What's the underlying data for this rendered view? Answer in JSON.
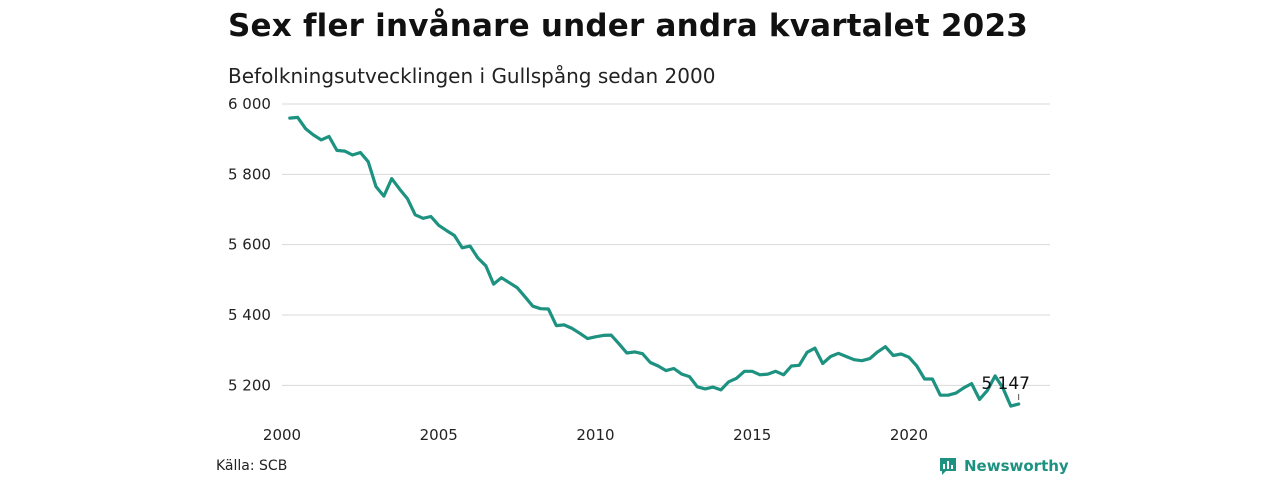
{
  "title": "Sex fler invånare under andra kvartalet 2023",
  "subtitle": "Befolkningsutvecklingen i Gullspång sedan 2000",
  "source": "Källa: SCB",
  "brand": "Newsworthy",
  "colors": {
    "line": "#1d9280",
    "grid": "#d9d9d9",
    "brand": "#1d9280"
  },
  "chart_data": {
    "type": "line",
    "title": "Sex fler invånare under andra kvartalet 2023",
    "subtitle": "Befolkningsutvecklingen i Gullspång sedan 2000",
    "xlabel": "",
    "ylabel": "",
    "xlim": [
      2000,
      2024.5
    ],
    "ylim": [
      5110,
      6000
    ],
    "y_ticks": [
      5200,
      5400,
      5600,
      5800,
      6000
    ],
    "y_tick_labels": [
      "5 200",
      "5 400",
      "5 600",
      "5 800",
      "6 000"
    ],
    "x_ticks": [
      2000,
      2005,
      2010,
      2015,
      2020
    ],
    "x_tick_labels": [
      "2000",
      "2005",
      "2010",
      "2015",
      "2020"
    ],
    "grid": "horizontal",
    "last_value_label": "5 147",
    "series": [
      {
        "x_start": 2000.25,
        "x_step": 0.25,
        "values": [
          5960,
          5962,
          5930,
          5912,
          5898,
          5908,
          5868,
          5866,
          5855,
          5862,
          5836,
          5765,
          5738,
          5788,
          5758,
          5731,
          5685,
          5675,
          5680,
          5655,
          5640,
          5626,
          5591,
          5596,
          5562,
          5540,
          5488,
          5506,
          5492,
          5478,
          5452,
          5425,
          5418,
          5417,
          5370,
          5372,
          5362,
          5348,
          5333,
          5338,
          5342,
          5343,
          5318,
          5292,
          5295,
          5290,
          5265,
          5255,
          5242,
          5248,
          5232,
          5225,
          5196,
          5190,
          5195,
          5187,
          5210,
          5220,
          5240,
          5240,
          5230,
          5232,
          5240,
          5230,
          5255,
          5257,
          5294,
          5306,
          5262,
          5282,
          5291,
          5282,
          5273,
          5270,
          5276,
          5295,
          5310,
          5285,
          5289,
          5280,
          5255,
          5218,
          5218,
          5172,
          5172,
          5178,
          5193,
          5205,
          5160,
          5185,
          5227,
          5192,
          5141,
          5147
        ]
      }
    ]
  }
}
